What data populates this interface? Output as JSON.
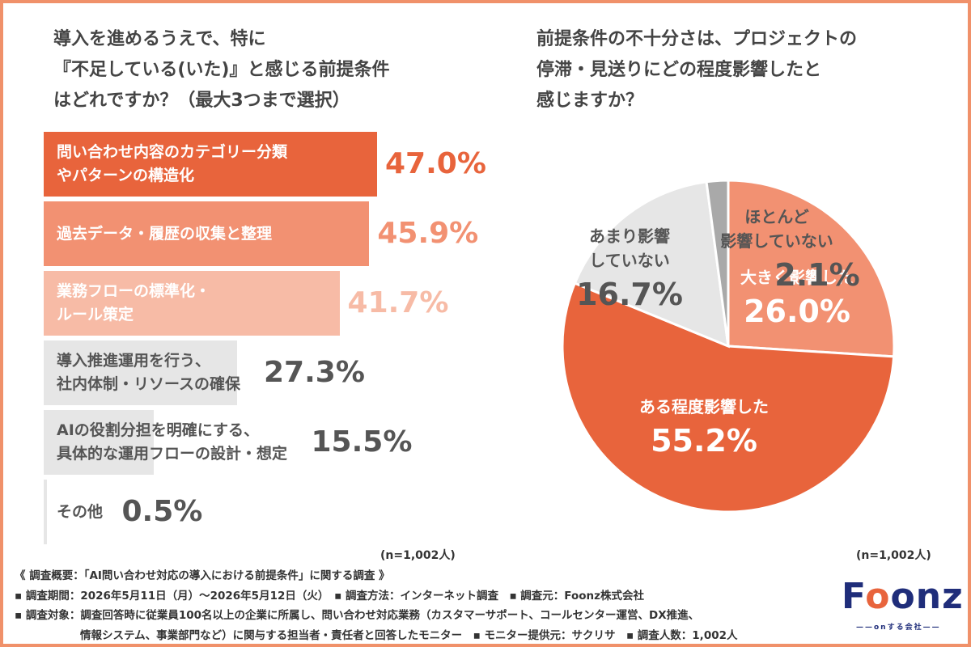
{
  "left": {
    "title_lines": [
      "導入を進めるうえで、特に",
      "『不足している(いた)』と感じる前提条件",
      "はどれですか？（最大3つまで選択）"
    ],
    "n_label": "(n=1,002人)"
  },
  "right": {
    "title_lines": [
      "前提条件の不十分さは、プロジェクトの",
      "停滞・見送りにどの程度影響したと",
      "感じますか？"
    ],
    "n_label": "(n=1,002人)"
  },
  "chart_data": [
    {
      "type": "bar",
      "orientation": "horizontal",
      "title": "導入を進めるうえで、特に『不足している(いた)』と感じる前提条件はどれですか？（最大3つまで選択）",
      "categories": [
        "問い合わせ内容のカテゴリー分類やパターンの構造化",
        "過去データ・履歴の収集と整理",
        "業務フローの標準化・ルール策定",
        "導入推進運用を行う、社内体制・リソースの確保",
        "AIの役割分担を明確にする、具体的な運用フローの設計・想定",
        "その他"
      ],
      "category_lines": [
        [
          "問い合わせ内容のカテゴリー分類",
          "やパターンの構造化"
        ],
        [
          "過去データ・履歴の収集と整理"
        ],
        [
          "業務フローの標準化・",
          "ルール策定"
        ],
        [
          "導入推進運用を行う、",
          "社内体制・リソースの確保"
        ],
        [
          "AIの役割分担を明確にする、",
          "具体的な運用フローの設計・想定"
        ],
        [
          "その他"
        ]
      ],
      "values": [
        47.0,
        45.9,
        41.7,
        27.3,
        15.5,
        0.5
      ],
      "value_labels": [
        "47.0%",
        "45.9%",
        "41.7%",
        "27.3%",
        "15.5%",
        "0.5%"
      ],
      "bar_colors": [
        "#e8643c",
        "#f29172",
        "#f7bba6",
        "#e6e6e6",
        "#e6e6e6",
        "#e6e6e6"
      ],
      "label_colors": [
        "#ffffff",
        "#ffffff",
        "#ffffff",
        "#555555",
        "#555555",
        "#555555"
      ],
      "value_colors": [
        "#e8643c",
        "#f29172",
        "#f7bba6",
        "#555555",
        "#555555",
        "#555555"
      ],
      "unit": "%"
    },
    {
      "type": "pie",
      "title": "前提条件の不十分さは、プロジェクトの停滞・見送りにどの程度影響したと感じますか？",
      "categories": [
        "大きく影響した",
        "ある程度影響した",
        "あまり影響していない",
        "ほとんど影響していない"
      ],
      "label_lines": [
        [
          "大きく影響した"
        ],
        [
          "ある程度影響した"
        ],
        [
          "あまり影響",
          "していない"
        ],
        [
          "ほとんど",
          "影響していない"
        ]
      ],
      "values": [
        26.0,
        55.2,
        16.7,
        2.1
      ],
      "value_labels": [
        "26.0%",
        "55.2%",
        "16.7%",
        "2.1%"
      ],
      "colors": [
        "#f29172",
        "#e8643c",
        "#e6e6e6",
        "#a9a9a9"
      ],
      "label_colors": [
        "#ffffff",
        "#ffffff",
        "#555555",
        "#555555"
      ],
      "start": "12 o'clock",
      "direction": "clockwise",
      "unit": "%"
    }
  ],
  "footer": {
    "lines": [
      "《 調査概要：「AI問い合わせ対応の導入における前提条件」に関する調査 》",
      "▪ 調査期間：2026年5月11日（月）〜2026年5月12日（火）　▪ 調査方法：インターネット調査　▪ 調査元：Foonz株式会社",
      "▪ 調査対象：調査回答時に従業員100名以上の企業に所属し、問い合わせ対応業務（カスタマーサポート、コールセンター運営、DX推進、",
      "　　　　　　情報システム、事業部門など）に関与する担当者・責任者と回答したモニター　▪ モニター提供元：サクリサ　▪ 調査人数：1,002人"
    ]
  },
  "logo": {
    "text_prefix": "F",
    "text_o": "o",
    "text_suffix": "onz",
    "tagline": "——onする会社——"
  },
  "colors": {
    "accent": "#e8643c",
    "frame": "#f0916a",
    "logo_navy": "#1f2d7a"
  }
}
